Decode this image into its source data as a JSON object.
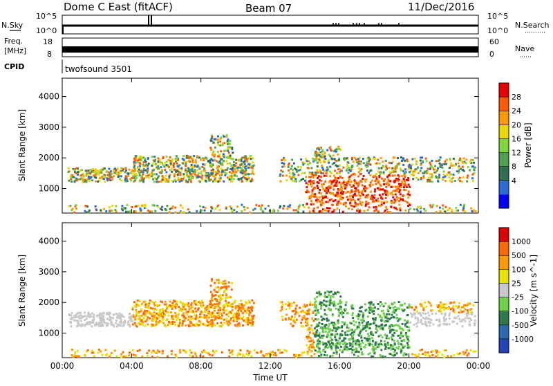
{
  "header": {
    "title": "Dome C East (fitACF)",
    "beam": "Beam 07",
    "date": "11/Dec/2016"
  },
  "strip_labels": {
    "nsky": "N.Sky",
    "nsky_top": "10^5",
    "nsky_bot": "10^0",
    "nsearch": "N.Search",
    "nsearch_top": "10^5",
    "nsearch_bot": "10^0",
    "freq_line1": "Freq.",
    "freq_line2": "[MHz]",
    "freq_top": "18",
    "freq_bot": "8",
    "nave": "Nave",
    "nave_top": "60",
    "nave_bot": "0",
    "cpid": "CPID",
    "cpid_text": "twofsound 3501"
  },
  "chart_data": [
    {
      "type": "heatmap",
      "name": "power",
      "ylabel": "Slant Range [km]",
      "yticks": [
        1000,
        2000,
        3000,
        4000
      ],
      "ylim": [
        200,
        4600
      ],
      "colorbar_label": "Power [dB]",
      "colorbar_ticks": [
        "28",
        "24",
        "20",
        "16",
        "12",
        "8",
        "4"
      ],
      "colors": [
        "#0000ff",
        "#2a6bd8",
        "#2f6e50",
        "#4ea050",
        "#7fd63a",
        "#e8d800",
        "#ff9a00",
        "#ff5a00",
        "#e80000"
      ]
    },
    {
      "type": "heatmap",
      "name": "velocity",
      "ylabel": "Slant Range [km]",
      "yticks": [
        1000,
        2000,
        3000,
        4000
      ],
      "ylim": [
        200,
        4600
      ],
      "xlabel": "Time UT",
      "xticks": [
        "00:00",
        "04:00",
        "08:00",
        "12:00",
        "16:00",
        "20:00",
        "00:00"
      ],
      "colorbar_label": "Velocity [m s^-1]",
      "colorbar_ticks": [
        "1000",
        "500",
        "100",
        "25",
        "-25",
        "-100",
        "-500",
        "-1000"
      ],
      "colors": [
        "#2444b8",
        "#2a6bb0",
        "#2f7a4c",
        "#6ed34a",
        "#c8c8c8",
        "#e8e200",
        "#ff9a00",
        "#ff6a00",
        "#e00000"
      ]
    }
  ]
}
